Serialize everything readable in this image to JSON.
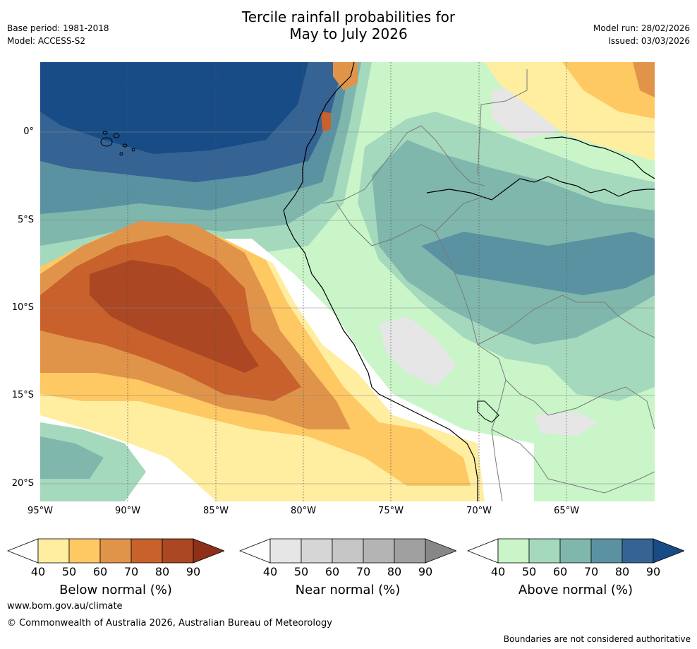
{
  "title": {
    "line1": "Tercile rainfall probabilities for",
    "line2": "May to July 2026"
  },
  "meta": {
    "base_period": "Base period: 1981-2018",
    "model": "Model: ACCESS-S2",
    "model_run": "Model run: 28/02/2026",
    "issued": "Issued: 03/03/2026"
  },
  "axes": {
    "lat_labels": [
      "0°",
      "5°S",
      "10°S",
      "15°S",
      "20°S"
    ],
    "lon_labels": [
      "95°W",
      "90°W",
      "85°W",
      "80°W",
      "75°W",
      "70°W",
      "65°W"
    ]
  },
  "colorbars": [
    {
      "label": "Below normal (%)",
      "ticks": [
        "40",
        "50",
        "60",
        "70",
        "80",
        "90"
      ],
      "colors": [
        "#ffffff",
        "#ffeda0",
        "#fec863",
        "#e0944a",
        "#c8612c",
        "#ab4722",
        "#8e3018"
      ]
    },
    {
      "label": "Near normal (%)",
      "ticks": [
        "40",
        "50",
        "60",
        "70",
        "80",
        "90"
      ],
      "colors": [
        "#ffffff",
        "#e6e6e6",
        "#d6d6d6",
        "#c6c6c6",
        "#b4b4b4",
        "#a0a0a0",
        "#878787"
      ]
    },
    {
      "label": "Above normal (%)",
      "ticks": [
        "40",
        "50",
        "60",
        "70",
        "80",
        "90"
      ],
      "colors": [
        "#ffffff",
        "#c9f5c9",
        "#a5d9be",
        "#7fb7ad",
        "#5b92a2",
        "#356394",
        "#174c86"
      ]
    }
  ],
  "footer": {
    "url": "www.bom.gov.au/climate",
    "copyright": "© Commonwealth of Australia 2026, Australian Bureau of Meteorology",
    "disclaimer": "Boundaries are not considered authoritative"
  }
}
